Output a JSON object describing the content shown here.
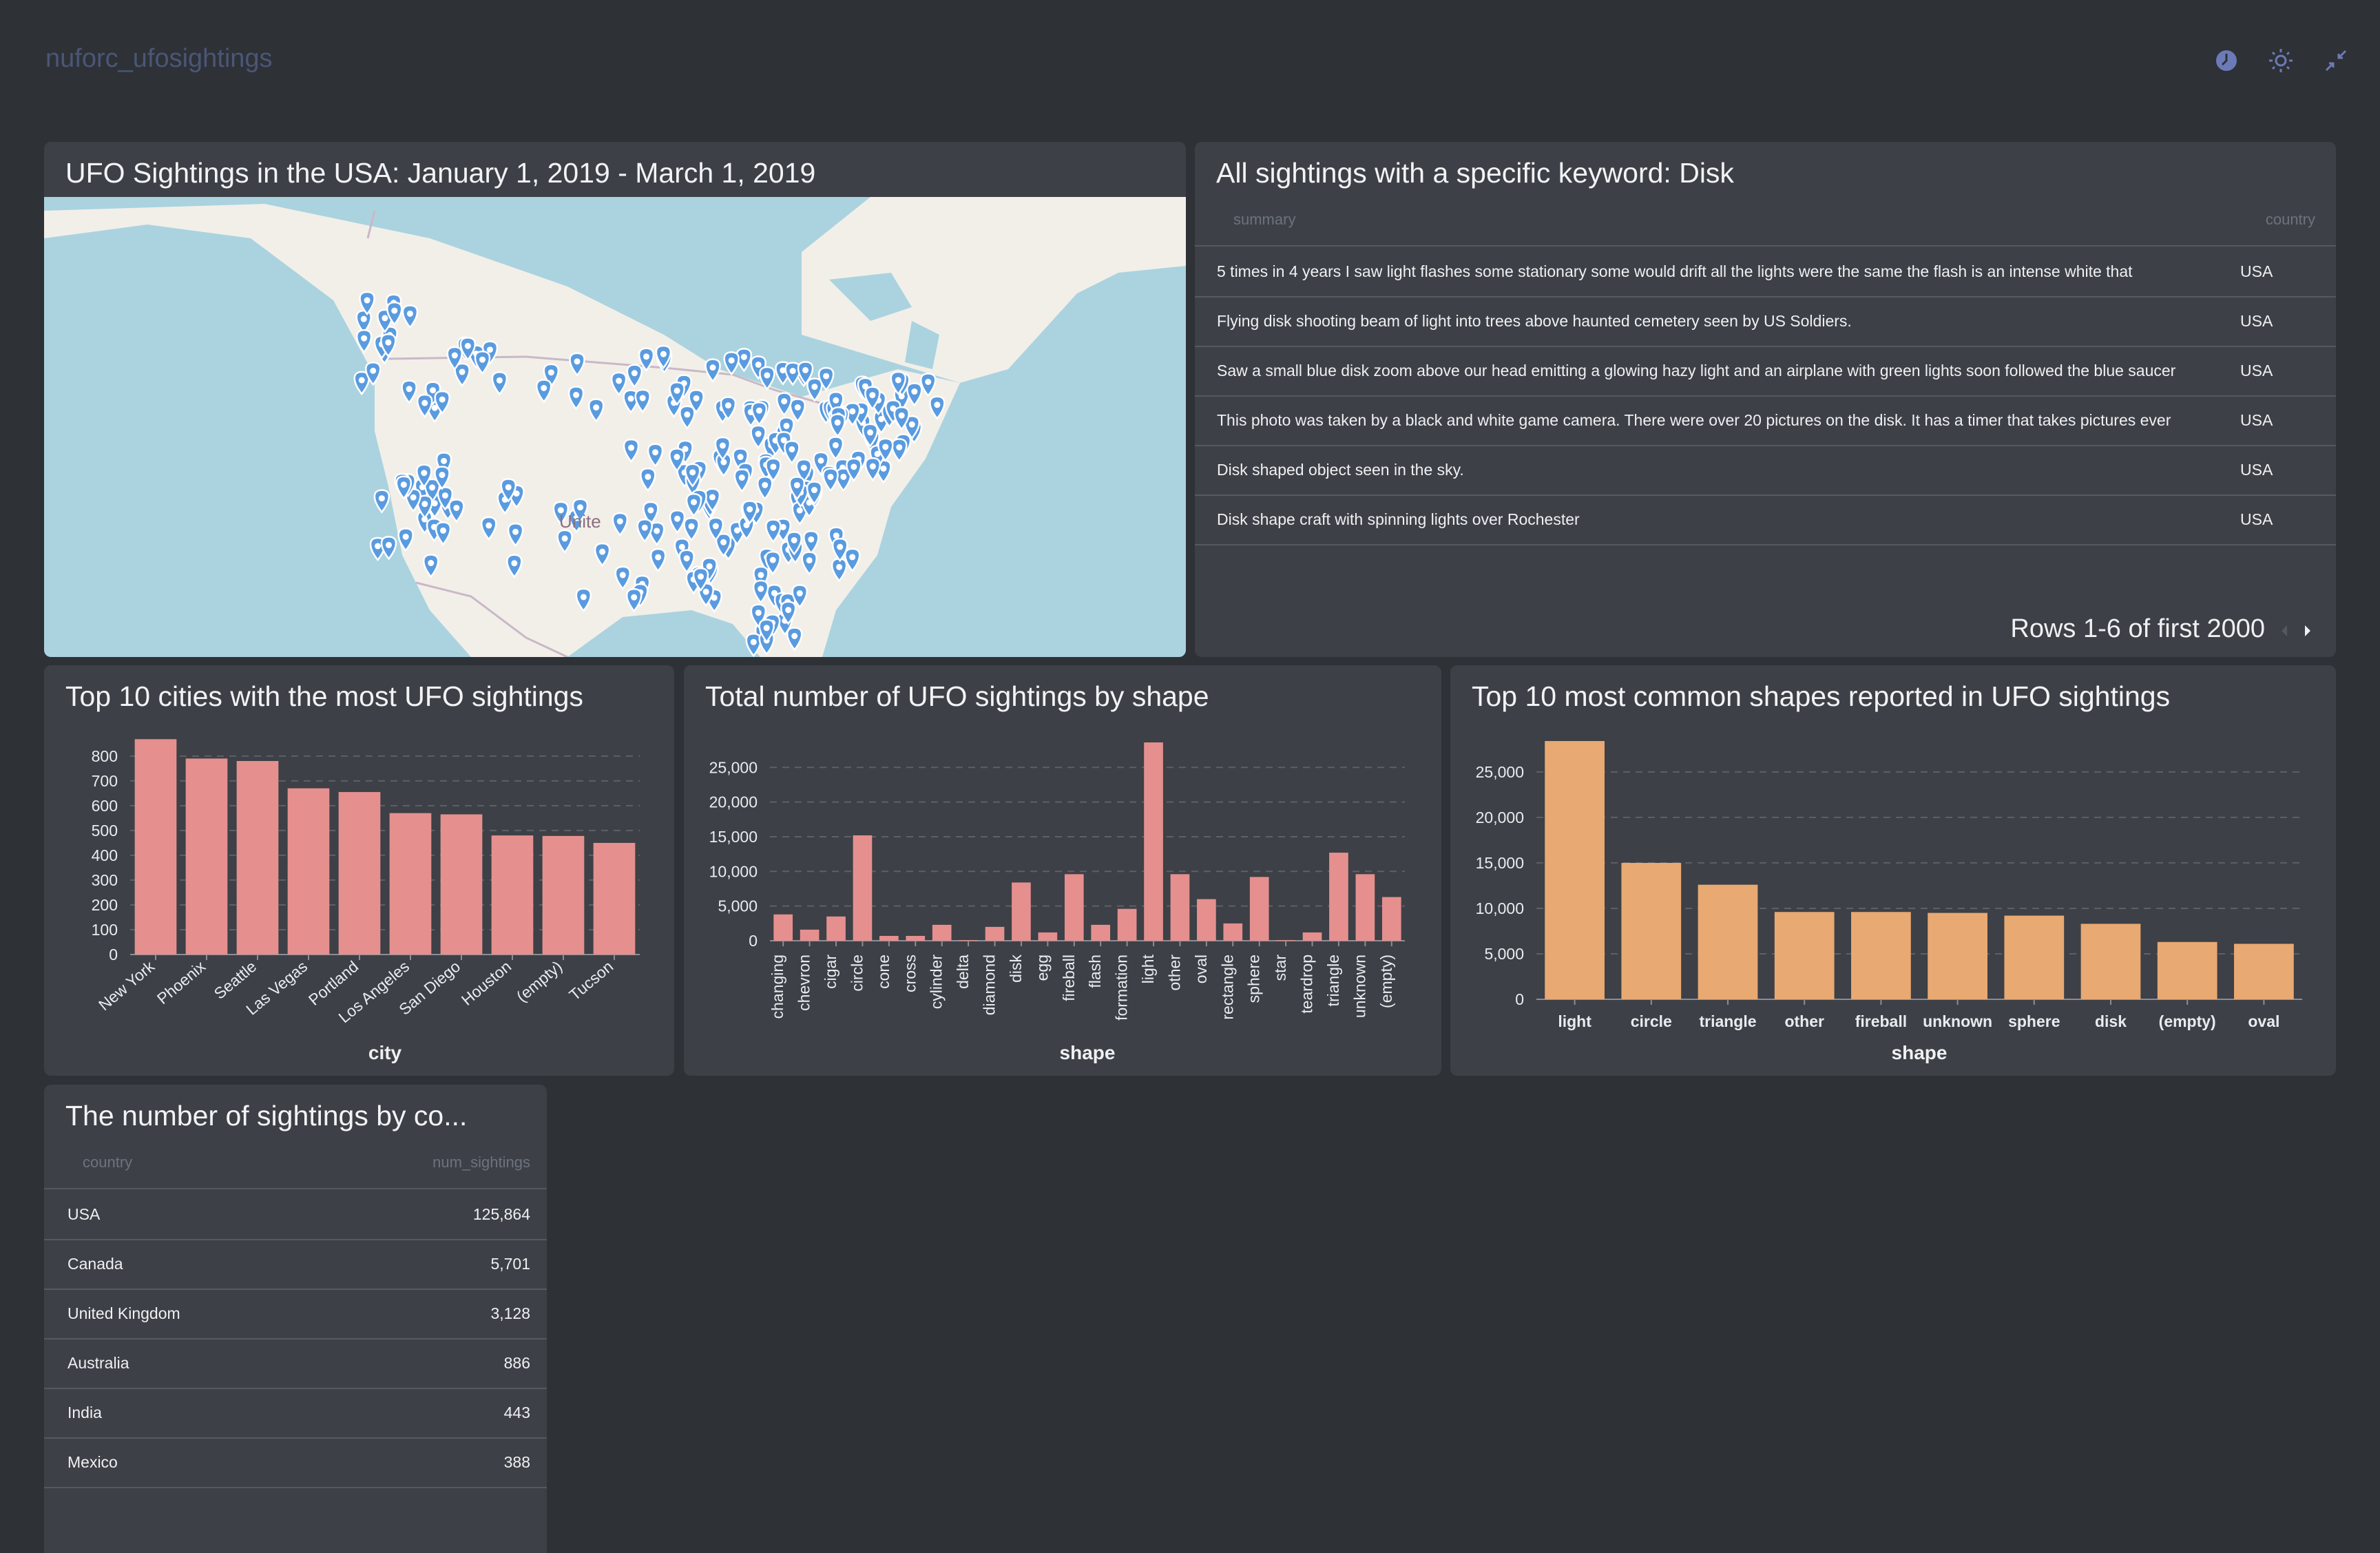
{
  "header": {
    "title": "nuforc_ufosightings"
  },
  "colors": {
    "bg": "#2e3136",
    "card": "#3d4046",
    "pink": "#e5908f",
    "orange": "#e9a972",
    "pin": "#5a9be0"
  },
  "map_card": {
    "title": "UFO Sightings in the USA: January 1, 2019 - March 1, 2019",
    "map_label": "Unite"
  },
  "keyword_table": {
    "title": "All sightings with a specific keyword: Disk",
    "columns": [
      "summary",
      "country"
    ],
    "rows": [
      {
        "summary": "5 times in 4 years I saw light flashes some stationary some would drift all the lights were the same the flash is an intense white that",
        "country": "USA"
      },
      {
        "summary": "Flying disk shooting beam of light into trees above haunted cemetery seen by US Soldiers.",
        "country": "USA"
      },
      {
        "summary": "Saw a small blue disk zoom above our head emitting a glowing hazy light and an airplane with green lights soon followed the blue saucer",
        "country": "USA"
      },
      {
        "summary": "This photo was taken by a black and white game camera. There were over 20 pictures on the disk. It has a timer that takes pictures ever",
        "country": "USA"
      },
      {
        "summary": "Disk shaped object seen in the sky.",
        "country": "USA"
      },
      {
        "summary": "Disk shape craft with spinning lights over Rochester",
        "country": "USA"
      }
    ],
    "pagination": "Rows 1-6 of first 2000"
  },
  "country_table": {
    "title": "The number of sightings by co...",
    "columns": [
      "country",
      "num_sightings"
    ],
    "rows": [
      {
        "country": "USA",
        "num": "125,864"
      },
      {
        "country": "Canada",
        "num": "5,701"
      },
      {
        "country": "United Kingdom",
        "num": "3,128"
      },
      {
        "country": "Australia",
        "num": "886"
      },
      {
        "country": "India",
        "num": "443"
      },
      {
        "country": "Mexico",
        "num": "388"
      }
    ]
  },
  "chart_data": [
    {
      "type": "bar",
      "title": "Top 10 cities with the most UFO sightings",
      "xlabel": "city",
      "ylabel": "",
      "categories": [
        "New York",
        "Phoenix",
        "Seattle",
        "Las Vegas",
        "Portland",
        "Los Angeles",
        "San Diego",
        "Houston",
        "(empty)",
        "Tucson"
      ],
      "values": [
        868,
        790,
        780,
        670,
        655,
        570,
        565,
        480,
        478,
        450
      ],
      "yticks": [
        0,
        100,
        200,
        300,
        400,
        500,
        600,
        700,
        800
      ],
      "ytick_labels": [
        "0",
        "100",
        "200",
        "300",
        "400",
        "500",
        "600",
        "700",
        "800"
      ],
      "ylim": [
        0,
        880
      ],
      "color": "#e5908f",
      "grid": true
    },
    {
      "type": "bar",
      "title": "Total number of UFO sightings by shape",
      "xlabel": "shape",
      "ylabel": "",
      "categories": [
        "changing",
        "chevron",
        "cigar",
        "circle",
        "cone",
        "cross",
        "cylinder",
        "delta",
        "diamond",
        "disk",
        "egg",
        "fireball",
        "flash",
        "formation",
        "light",
        "other",
        "oval",
        "rectangle",
        "sphere",
        "star",
        "teardrop",
        "triangle",
        "unknown",
        "(empty)"
      ],
      "values": [
        3800,
        1600,
        3500,
        15200,
        700,
        700,
        2300,
        100,
        2000,
        8400,
        1200,
        9600,
        2300,
        4600,
        28600,
        9600,
        6000,
        2500,
        9200,
        100,
        1200,
        12700,
        9600,
        6300
      ],
      "yticks": [
        0,
        5000,
        10000,
        15000,
        20000,
        25000
      ],
      "ytick_labels": [
        "0",
        "5,000",
        "10,000",
        "15,000",
        "20,000",
        "25,000"
      ],
      "ylim": [
        0,
        28800
      ],
      "color": "#e5908f",
      "grid": true
    },
    {
      "type": "bar",
      "title": "Top 10 most common shapes reported in UFO sightings",
      "xlabel": "shape",
      "ylabel": "",
      "categories": [
        "light",
        "circle",
        "triangle",
        "other",
        "fireball",
        "unknown",
        "sphere",
        "disk",
        "(empty)",
        "oval"
      ],
      "values": [
        28400,
        15000,
        12600,
        9600,
        9600,
        9500,
        9200,
        8300,
        6300,
        6100
      ],
      "yticks": [
        0,
        5000,
        10000,
        15000,
        20000,
        25000
      ],
      "ytick_labels": [
        "0",
        "5,000",
        "10,000",
        "15,000",
        "20,000",
        "25,000"
      ],
      "ylim": [
        0,
        28400
      ],
      "color": "#e9a972",
      "grid": true
    }
  ]
}
